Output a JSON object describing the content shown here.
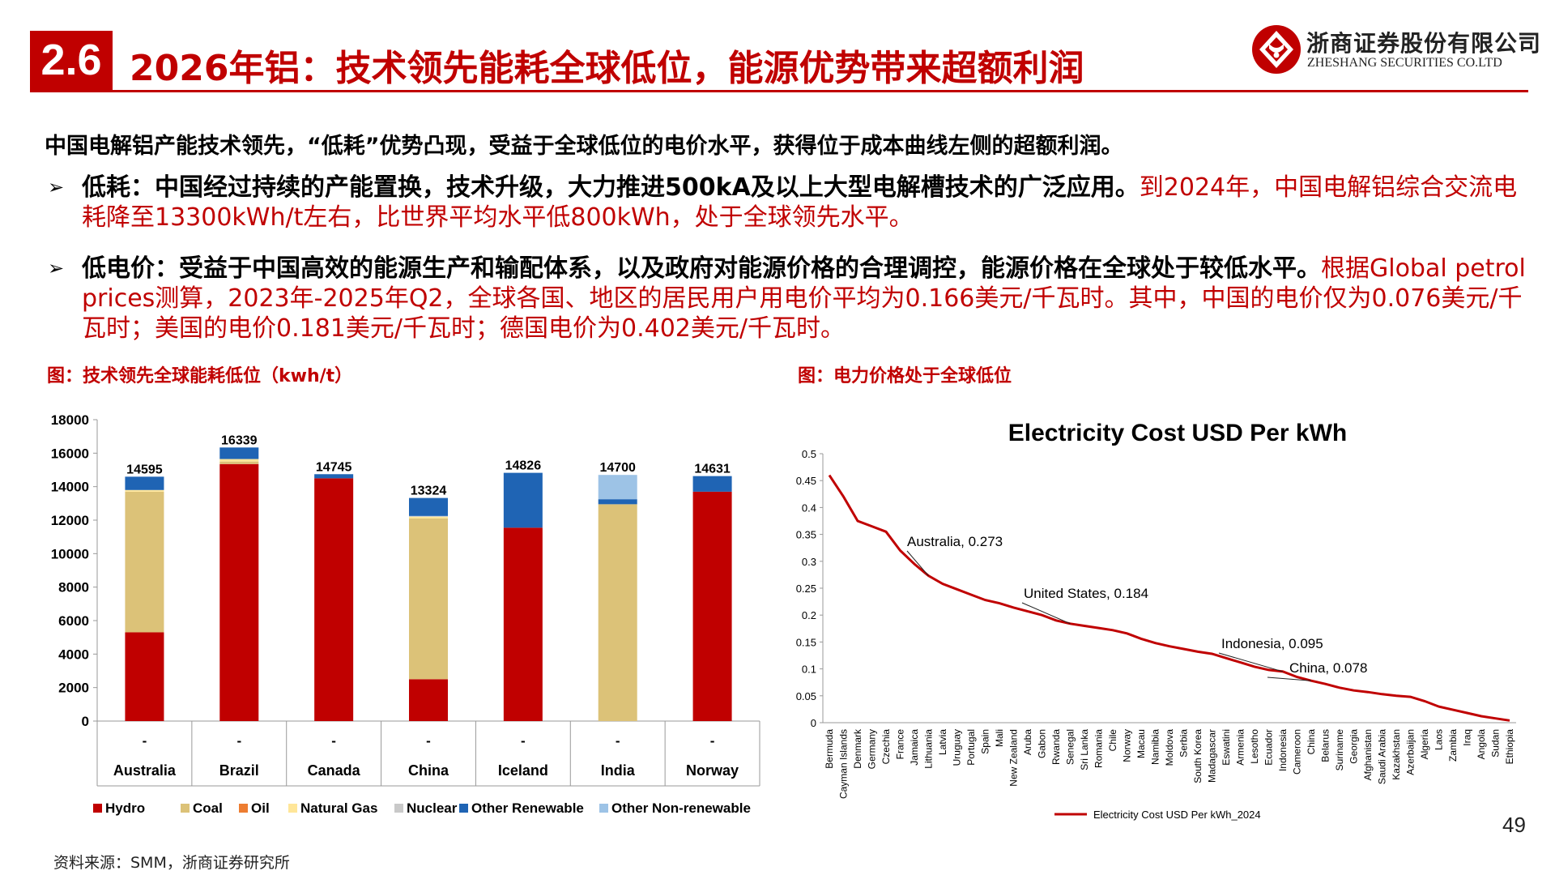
{
  "header": {
    "section_number": "2.6",
    "title": "2026年铝：技术领先能耗全球低位，能源优势带来超额利润",
    "logo_cn": "浙商证券股份有限公司",
    "logo_en": "ZHESHANG SECURITIES CO.LTD"
  },
  "body": {
    "lead": "中国电解铝产能技术领先，“低耗”优势凸现，受益于全球低位的电价水平，获得位于成本曲线左侧的超额利润。",
    "bullets": [
      {
        "bold": "低耗：中国经过持续的产能置换，技术升级，大力推进500kA及以上大型电解槽技术的广泛应用。",
        "red": "到2024年，中国电解铝综合交流电耗降至13300kWh/t左右，比世界平均水平低800kWh，处于全球领先水平。"
      },
      {
        "bold": "低电价：受益于中国高效的能源生产和输配体系，以及政府对能源价格的合理调控，能源价格在全球处于较低水平。",
        "red": "根据Global petrol prices测算，2023年-2025年Q2，全球各国、地区的居民用户用电价平均为0.166美元/千瓦时。其中，中国的电价仅为0.076美元/千瓦时；美国的电价0.181美元/千瓦时；德国电价为0.402美元/千瓦时。"
      }
    ]
  },
  "captions": {
    "left": "图：技术领先全球能耗低位（kwh/t）",
    "right": "图：电力价格处于全球低位"
  },
  "footer": {
    "source": "资料来源：SMM，浙商证券研究所",
    "page": "49"
  },
  "colors": {
    "brand_red": "#c00000",
    "hydro": "#c00000",
    "coal": "#dcc278",
    "oil": "#ed7d31",
    "natural_gas": "#ffe699",
    "nuclear": "#c9c9c9",
    "other_renewable": "#1f64b4",
    "other_nonrenewable": "#9dc3e6",
    "line": "#c00000"
  },
  "chart_data": [
    {
      "type": "bar",
      "stacked": true,
      "categories": [
        "Australia",
        "Brazil",
        "Canada",
        "China",
        "Iceland",
        "India",
        "Norway"
      ],
      "category_sublabels": [
        "-",
        "-",
        "-",
        "-",
        "-",
        "-",
        "-"
      ],
      "ylim": [
        0,
        18000
      ],
      "yticks": [
        0,
        2000,
        4000,
        6000,
        8000,
        10000,
        12000,
        14000,
        16000,
        18000
      ],
      "series": [
        {
          "name": "Hydro",
          "values": [
            5300,
            15350,
            14500,
            2500,
            11550,
            0,
            13700
          ]
        },
        {
          "name": "Coal",
          "values": [
            8400,
            150,
            0,
            9600,
            0,
            12950,
            0
          ]
        },
        {
          "name": "Oil",
          "values": [
            0,
            0,
            0,
            0,
            0,
            0,
            0
          ]
        },
        {
          "name": "Natural Gas",
          "values": [
            100,
            150,
            0,
            100,
            0,
            0,
            0
          ]
        },
        {
          "name": "Nuclear",
          "values": [
            0,
            0,
            0,
            50,
            0,
            0,
            0
          ]
        },
        {
          "name": "Other Renewable",
          "values": [
            795,
            689,
            245,
            1074,
            3276,
            300,
            931
          ]
        },
        {
          "name": "Other Non-renewable",
          "values": [
            0,
            0,
            0,
            0,
            0,
            1450,
            0
          ]
        }
      ],
      "totals": [
        14595,
        16339,
        14745,
        13324,
        14826,
        14700,
        14631
      ],
      "legend": "bottom"
    },
    {
      "type": "line",
      "title": "Electricity Cost USD Per kWh",
      "ylim": [
        0,
        0.5
      ],
      "yticks": [
        0,
        0.05,
        0.1,
        0.15,
        0.2,
        0.25,
        0.3,
        0.35,
        0.4,
        0.45,
        0.5
      ],
      "series_name": "Electricity Cost USD Per kWh_2024",
      "x_tick_labels": [
        "Bermuda",
        "Cayman Islands",
        "Denmark",
        "Germany",
        "Czechia",
        "France",
        "Jamaica",
        "Lithuania",
        "Latvia",
        "Uruguay",
        "Portugal",
        "Spain",
        "Mali",
        "New Zealand",
        "Aruba",
        "Gabon",
        "Rwanda",
        "Senegal",
        "Sri Lanka",
        "Romania",
        "Chile",
        "Norway",
        "Macau",
        "Namibia",
        "Moldova",
        "Serbia",
        "South Korea",
        "Madagascar",
        "Eswatini",
        "Armenia",
        "Lesotho",
        "Ecuador",
        "Indonesia",
        "Cameroon",
        "China",
        "Belarus",
        "Suriname",
        "Georgia",
        "Afghanistan",
        "Saudi Arabia",
        "Kazakhstan",
        "Azerbaijan",
        "Algeria",
        "Laos",
        "Zambia",
        "Iraq",
        "Angola",
        "Sudan",
        "Ethiopia"
      ],
      "values": [
        0.46,
        0.42,
        0.375,
        0.365,
        0.355,
        0.32,
        0.295,
        0.273,
        0.258,
        0.248,
        0.238,
        0.228,
        0.222,
        0.214,
        0.207,
        0.2,
        0.19,
        0.184,
        0.18,
        0.176,
        0.172,
        0.166,
        0.156,
        0.148,
        0.142,
        0.137,
        0.132,
        0.128,
        0.12,
        0.112,
        0.104,
        0.098,
        0.095,
        0.085,
        0.078,
        0.072,
        0.065,
        0.06,
        0.057,
        0.053,
        0.05,
        0.048,
        0.04,
        0.03,
        0.024,
        0.018,
        0.012,
        0.008,
        0.004
      ],
      "annotations": [
        {
          "label": "Australia, 0.273",
          "value": 0.273
        },
        {
          "label": "United States, 0.184",
          "value": 0.184
        },
        {
          "label": "Indonesia, 0.095",
          "value": 0.095
        },
        {
          "label": "China, 0.078",
          "value": 0.078
        }
      ],
      "legend": "bottom"
    }
  ]
}
